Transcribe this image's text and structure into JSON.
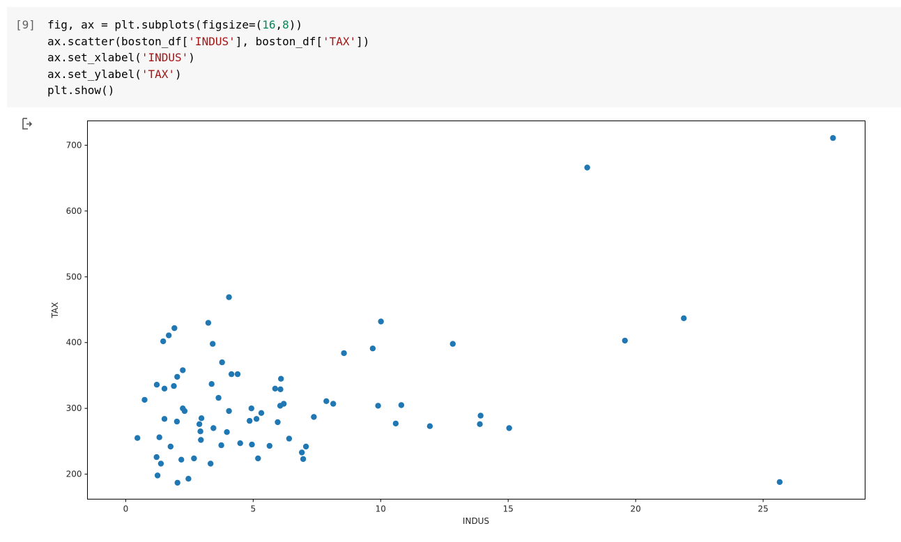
{
  "cell": {
    "execution_count": "[9]",
    "code_lines": [
      [
        {
          "t": "fig, ax = plt.subplots(figsize=(",
          "c": ""
        },
        {
          "t": "16",
          "c": "num"
        },
        {
          "t": ",",
          "c": ""
        },
        {
          "t": "8",
          "c": "num"
        },
        {
          "t": "))",
          "c": ""
        }
      ],
      [
        {
          "t": "ax.scatter(boston_df[",
          "c": ""
        },
        {
          "t": "'INDUS'",
          "c": "str"
        },
        {
          "t": "], boston_df[",
          "c": ""
        },
        {
          "t": "'TAX'",
          "c": "str"
        },
        {
          "t": "])",
          "c": ""
        }
      ],
      [
        {
          "t": "ax.set_xlabel(",
          "c": ""
        },
        {
          "t": "'INDUS'",
          "c": "str"
        },
        {
          "t": ")",
          "c": ""
        }
      ],
      [
        {
          "t": "ax.set_ylabel(",
          "c": ""
        },
        {
          "t": "'TAX'",
          "c": "str"
        },
        {
          "t": ")",
          "c": ""
        }
      ],
      [
        {
          "t": "plt.show()",
          "c": ""
        }
      ]
    ],
    "output_icon": "output-arrow-icon"
  },
  "chart_data": {
    "type": "scatter",
    "xlabel": "INDUS",
    "ylabel": "TAX",
    "xlim": [
      -1.5,
      29.0
    ],
    "ylim": [
      162,
      737
    ],
    "xticks": [
      0,
      5,
      10,
      15,
      20,
      25
    ],
    "yticks": [
      200,
      300,
      400,
      500,
      600,
      700
    ],
    "marker_color": "#1f77b4",
    "grid": false,
    "points": [
      [
        27.74,
        711
      ],
      [
        18.1,
        666
      ],
      [
        21.89,
        437
      ],
      [
        19.58,
        403
      ],
      [
        25.65,
        188
      ],
      [
        4.05,
        469
      ],
      [
        3.24,
        430
      ],
      [
        10.01,
        432
      ],
      [
        1.91,
        422
      ],
      [
        1.69,
        411
      ],
      [
        1.47,
        402
      ],
      [
        3.41,
        398
      ],
      [
        12.83,
        398
      ],
      [
        9.69,
        391
      ],
      [
        8.56,
        384
      ],
      [
        3.78,
        370
      ],
      [
        2.24,
        358
      ],
      [
        2.02,
        348
      ],
      [
        4.15,
        352
      ],
      [
        4.39,
        352
      ],
      [
        6.09,
        345
      ],
      [
        1.22,
        336
      ],
      [
        3.37,
        337
      ],
      [
        1.89,
        334
      ],
      [
        1.52,
        330
      ],
      [
        5.86,
        330
      ],
      [
        6.07,
        329
      ],
      [
        3.64,
        316
      ],
      [
        0.74,
        313
      ],
      [
        7.87,
        311
      ],
      [
        8.14,
        307
      ],
      [
        6.2,
        307
      ],
      [
        6.06,
        304
      ],
      [
        9.9,
        304
      ],
      [
        10.81,
        305
      ],
      [
        2.24,
        300
      ],
      [
        4.93,
        300
      ],
      [
        2.31,
        296
      ],
      [
        4.05,
        296
      ],
      [
        5.32,
        293
      ],
      [
        13.92,
        289
      ],
      [
        7.38,
        287
      ],
      [
        1.52,
        284
      ],
      [
        2.97,
        285
      ],
      [
        5.13,
        284
      ],
      [
        4.86,
        281
      ],
      [
        2.01,
        280
      ],
      [
        5.96,
        279
      ],
      [
        10.59,
        277
      ],
      [
        2.89,
        276
      ],
      [
        13.89,
        276
      ],
      [
        11.93,
        273
      ],
      [
        3.44,
        270
      ],
      [
        15.04,
        270
      ],
      [
        2.93,
        265
      ],
      [
        3.97,
        264
      ],
      [
        0.46,
        255
      ],
      [
        1.32,
        256
      ],
      [
        6.41,
        254
      ],
      [
        2.95,
        252
      ],
      [
        4.49,
        247
      ],
      [
        3.75,
        244
      ],
      [
        4.95,
        245
      ],
      [
        5.64,
        243
      ],
      [
        1.76,
        242
      ],
      [
        7.07,
        242
      ],
      [
        6.91,
        233
      ],
      [
        1.21,
        226
      ],
      [
        2.68,
        224
      ],
      [
        5.19,
        224
      ],
      [
        6.96,
        223
      ],
      [
        2.18,
        222
      ],
      [
        1.38,
        216
      ],
      [
        3.33,
        216
      ],
      [
        1.25,
        198
      ],
      [
        2.46,
        193
      ],
      [
        2.03,
        187
      ]
    ]
  }
}
